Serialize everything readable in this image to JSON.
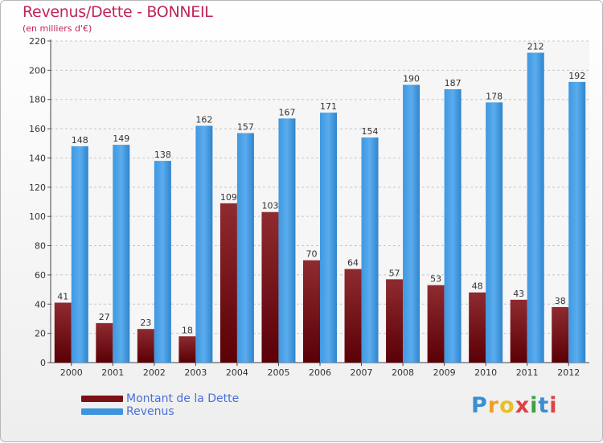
{
  "title": "Revenus/Dette - BONNEIL",
  "subtitle": "(en milliers d'€)",
  "chart_data": {
    "type": "bar",
    "categories": [
      "2000",
      "2001",
      "2002",
      "2003",
      "2004",
      "2005",
      "2006",
      "2007",
      "2008",
      "2009",
      "2010",
      "2011",
      "2012"
    ],
    "series": [
      {
        "name": "Montant de la Dette",
        "color": "#7a1018",
        "values": [
          41,
          27,
          23,
          18,
          109,
          103,
          70,
          64,
          57,
          53,
          48,
          43,
          38
        ]
      },
      {
        "name": "Revenus",
        "color": "#3d93dc",
        "values": [
          148,
          149,
          138,
          162,
          157,
          167,
          171,
          154,
          190,
          187,
          178,
          212,
          192
        ]
      }
    ],
    "ylim": [
      0,
      220
    ],
    "yticks": [
      0,
      20,
      40,
      60,
      80,
      100,
      120,
      140,
      160,
      180,
      200,
      220
    ],
    "grid": true,
    "legend_position": "bottom-left"
  },
  "legend": [
    {
      "label": "Montant de la Dette",
      "color": "#7a1018"
    },
    {
      "label": "Revenus",
      "color": "#3d93dc"
    }
  ],
  "logo": {
    "letters": [
      "P",
      "r",
      "o",
      "x",
      "i",
      "t",
      "i"
    ],
    "colors": [
      "#3a8fd0",
      "#f0a020",
      "#e8c020",
      "#e04040",
      "#40a040",
      "#3a8fd0",
      "#e04040"
    ]
  }
}
